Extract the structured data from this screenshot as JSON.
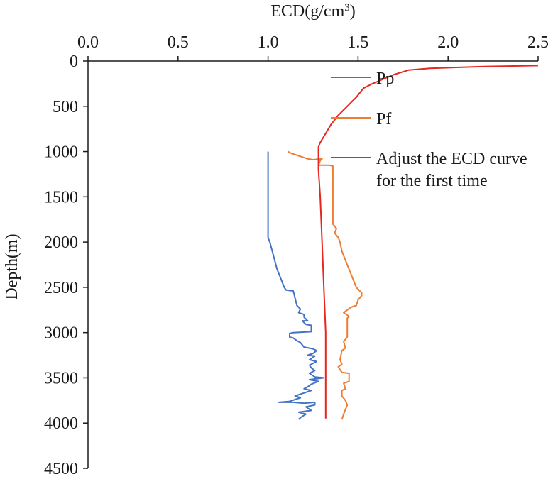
{
  "chart_data": {
    "type": "line",
    "title": "",
    "xlabel": "ECD(g/cm",
    "xlabel_sup": "3",
    "xlabel_close": ")",
    "ylabel": "Depth(m)",
    "xlim": [
      0,
      2.5
    ],
    "ylim": [
      0,
      4500
    ],
    "x_axis_position": "top",
    "y_inverted": true,
    "grid": false,
    "x_ticks": [
      0.0,
      0.5,
      1.0,
      1.5,
      2.0,
      2.5
    ],
    "x_tick_labels": [
      "0.0",
      "0.5",
      "1.0",
      "1.5",
      "2.0",
      "2.5"
    ],
    "y_ticks": [
      0,
      500,
      1000,
      1500,
      2000,
      2500,
      3000,
      3500,
      4000,
      4500
    ],
    "y_tick_labels": [
      "0",
      "500",
      "1000",
      "1500",
      "2000",
      "2500",
      "3000",
      "3500",
      "4000",
      "4500"
    ],
    "legend_position": "top-right",
    "series": [
      {
        "name": "Pp",
        "color": "#4472c4",
        "points": [
          [
            1.0,
            1000
          ],
          [
            1.0,
            1100
          ],
          [
            1.0,
            1500
          ],
          [
            1.0,
            1950
          ],
          [
            1.01,
            2000
          ],
          [
            1.03,
            2150
          ],
          [
            1.05,
            2300
          ],
          [
            1.07,
            2400
          ],
          [
            1.08,
            2450
          ],
          [
            1.09,
            2500
          ],
          [
            1.1,
            2530
          ],
          [
            1.14,
            2540
          ],
          [
            1.16,
            2700
          ],
          [
            1.18,
            2740
          ],
          [
            1.17,
            2780
          ],
          [
            1.2,
            2800
          ],
          [
            1.2,
            2830
          ],
          [
            1.22,
            2870
          ],
          [
            1.19,
            2870
          ],
          [
            1.21,
            2910
          ],
          [
            1.24,
            2920
          ],
          [
            1.24,
            2990
          ],
          [
            1.14,
            3000
          ],
          [
            1.12,
            3010
          ],
          [
            1.12,
            3050
          ],
          [
            1.14,
            3060
          ],
          [
            1.16,
            3090
          ],
          [
            1.18,
            3110
          ],
          [
            1.2,
            3160
          ],
          [
            1.25,
            3180
          ],
          [
            1.27,
            3200
          ],
          [
            1.25,
            3230
          ],
          [
            1.22,
            3250
          ],
          [
            1.26,
            3260
          ],
          [
            1.23,
            3300
          ],
          [
            1.27,
            3320
          ],
          [
            1.23,
            3360
          ],
          [
            1.24,
            3390
          ],
          [
            1.26,
            3420
          ],
          [
            1.23,
            3450
          ],
          [
            1.26,
            3490
          ],
          [
            1.31,
            3500
          ],
          [
            1.23,
            3520
          ],
          [
            1.28,
            3540
          ],
          [
            1.24,
            3570
          ],
          [
            1.22,
            3600
          ],
          [
            1.2,
            3620
          ],
          [
            1.24,
            3640
          ],
          [
            1.18,
            3680
          ],
          [
            1.15,
            3700
          ],
          [
            1.18,
            3720
          ],
          [
            1.12,
            3760
          ],
          [
            1.06,
            3770
          ],
          [
            1.14,
            3770
          ],
          [
            1.2,
            3780
          ],
          [
            1.26,
            3770
          ],
          [
            1.26,
            3800
          ],
          [
            1.21,
            3820
          ],
          [
            1.24,
            3860
          ],
          [
            1.17,
            3880
          ],
          [
            1.21,
            3900
          ],
          [
            1.18,
            3940
          ],
          [
            1.17,
            3960
          ]
        ]
      },
      {
        "name": "Pf",
        "color": "#ed7d31",
        "points": [
          [
            1.11,
            1000
          ],
          [
            1.13,
            1020
          ],
          [
            1.16,
            1040
          ],
          [
            1.19,
            1060
          ],
          [
            1.22,
            1080
          ],
          [
            1.25,
            1090
          ],
          [
            1.3,
            1080
          ],
          [
            1.29,
            1100
          ],
          [
            1.28,
            1150
          ],
          [
            1.34,
            1150
          ],
          [
            1.36,
            1160
          ],
          [
            1.36,
            1400
          ],
          [
            1.36,
            1800
          ],
          [
            1.38,
            1850
          ],
          [
            1.37,
            1900
          ],
          [
            1.39,
            1950
          ],
          [
            1.4,
            2000
          ],
          [
            1.41,
            2100
          ],
          [
            1.43,
            2200
          ],
          [
            1.45,
            2300
          ],
          [
            1.47,
            2400
          ],
          [
            1.49,
            2500
          ],
          [
            1.52,
            2560
          ],
          [
            1.52,
            2590
          ],
          [
            1.5,
            2640
          ],
          [
            1.49,
            2700
          ],
          [
            1.46,
            2720
          ],
          [
            1.42,
            2780
          ],
          [
            1.45,
            2820
          ],
          [
            1.44,
            2840
          ],
          [
            1.44,
            3050
          ],
          [
            1.42,
            3100
          ],
          [
            1.43,
            3170
          ],
          [
            1.41,
            3200
          ],
          [
            1.4,
            3300
          ],
          [
            1.41,
            3350
          ],
          [
            1.39,
            3380
          ],
          [
            1.41,
            3440
          ],
          [
            1.45,
            3450
          ],
          [
            1.45,
            3540
          ],
          [
            1.42,
            3560
          ],
          [
            1.43,
            3620
          ],
          [
            1.41,
            3640
          ],
          [
            1.41,
            3700
          ],
          [
            1.43,
            3750
          ],
          [
            1.44,
            3800
          ],
          [
            1.43,
            3850
          ],
          [
            1.42,
            3900
          ],
          [
            1.41,
            3960
          ]
        ]
      },
      {
        "name": "Adjust the ECD curve for the first time",
        "color": "#e8251f",
        "points": [
          [
            2.5,
            50
          ],
          [
            2.2,
            60
          ],
          [
            1.9,
            80
          ],
          [
            1.78,
            100
          ],
          [
            1.7,
            150
          ],
          [
            1.64,
            200
          ],
          [
            1.58,
            250
          ],
          [
            1.53,
            300
          ],
          [
            1.49,
            400
          ],
          [
            1.44,
            500
          ],
          [
            1.39,
            600
          ],
          [
            1.35,
            700
          ],
          [
            1.32,
            800
          ],
          [
            1.29,
            900
          ],
          [
            1.28,
            950
          ],
          [
            1.28,
            1000
          ],
          [
            1.28,
            1200
          ],
          [
            1.29,
            1500
          ],
          [
            1.3,
            2000
          ],
          [
            1.31,
            2500
          ],
          [
            1.32,
            3000
          ],
          [
            1.32,
            3500
          ],
          [
            1.32,
            3950
          ]
        ]
      }
    ],
    "legend": {
      "pp": "Pp",
      "pf": "Pf",
      "ecd_line1": "Adjust the ECD curve",
      "ecd_line2": "for the first time"
    }
  }
}
